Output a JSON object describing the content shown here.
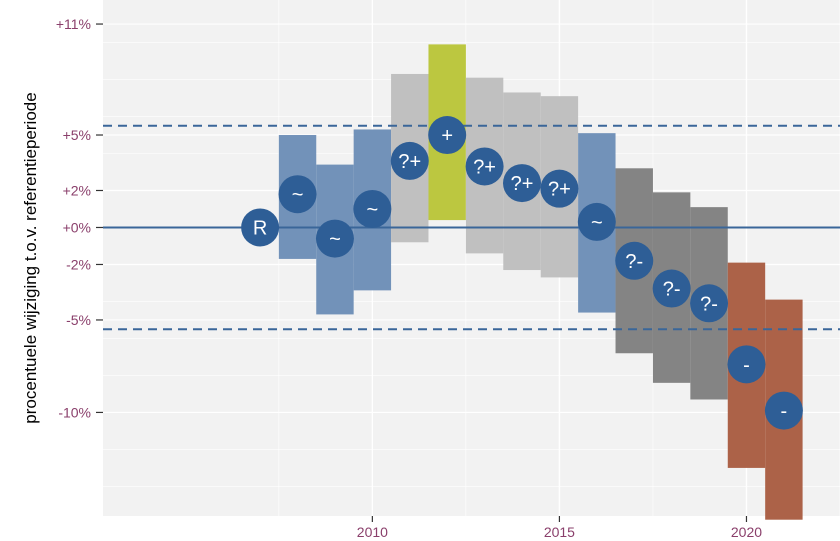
{
  "chart_data": {
    "type": "bar",
    "title": "",
    "xlabel": "",
    "ylabel": "procentuele wijziging t.o.v. referentieperiode",
    "xlim": [
      2002.8,
      2022.5
    ],
    "ylim": [
      -15.6,
      12.3
    ],
    "x_ticks": [
      2010,
      2015,
      2020
    ],
    "y_ticks": [
      {
        "value": 11,
        "label": "+11%"
      },
      {
        "value": 5,
        "label": "+5%"
      },
      {
        "value": 2,
        "label": "+2%"
      },
      {
        "value": 0,
        "label": "+0%"
      },
      {
        "value": -2,
        "label": "-2%"
      },
      {
        "value": -5,
        "label": "-5%"
      },
      {
        "value": -10,
        "label": "-10%"
      }
    ],
    "reference_line": 0,
    "threshold_lines": [
      5.5,
      -5.5
    ],
    "grid": true,
    "legend": "none",
    "colors": {
      "R": "#3a6699",
      "~": "#6a8cb5",
      "+": "#b8c436",
      "?+": "#bdbdbd",
      "?-": "#7d7d7d",
      "-": "#a85a3e",
      "point": "#2e5e96",
      "reference": "#3a6699"
    },
    "points": [
      {
        "year": 2007,
        "estimate": 0.0,
        "lower": null,
        "upper": null,
        "class": "R"
      },
      {
        "year": 2008,
        "estimate": 1.8,
        "lower": -1.7,
        "upper": 5.0,
        "class": "~"
      },
      {
        "year": 2009,
        "estimate": -0.6,
        "lower": -4.7,
        "upper": 3.4,
        "class": "~"
      },
      {
        "year": 2010,
        "estimate": 1.0,
        "lower": -3.4,
        "upper": 5.3,
        "class": "~"
      },
      {
        "year": 2011,
        "estimate": 3.6,
        "lower": -0.8,
        "upper": 8.3,
        "class": "?+"
      },
      {
        "year": 2012,
        "estimate": 5.0,
        "lower": 0.4,
        "upper": 9.9,
        "class": "+"
      },
      {
        "year": 2013,
        "estimate": 3.3,
        "lower": -1.4,
        "upper": 8.1,
        "class": "?+"
      },
      {
        "year": 2014,
        "estimate": 2.4,
        "lower": -2.3,
        "upper": 7.3,
        "class": "?+"
      },
      {
        "year": 2015,
        "estimate": 2.1,
        "lower": -2.7,
        "upper": 7.1,
        "class": "?+"
      },
      {
        "year": 2016,
        "estimate": 0.3,
        "lower": -4.6,
        "upper": 5.1,
        "class": "~"
      },
      {
        "year": 2017,
        "estimate": -1.8,
        "lower": -6.8,
        "upper": 3.2,
        "class": "?-"
      },
      {
        "year": 2018,
        "estimate": -3.3,
        "lower": -8.4,
        "upper": 1.9,
        "class": "?-"
      },
      {
        "year": 2019,
        "estimate": -4.1,
        "lower": -9.3,
        "upper": 1.1,
        "class": "?-"
      },
      {
        "year": 2020,
        "estimate": -7.4,
        "lower": -13.0,
        "upper": -1.9,
        "class": "-"
      },
      {
        "year": 2021,
        "estimate": -9.9,
        "lower": -15.8,
        "upper": -3.9,
        "class": "-"
      }
    ]
  }
}
